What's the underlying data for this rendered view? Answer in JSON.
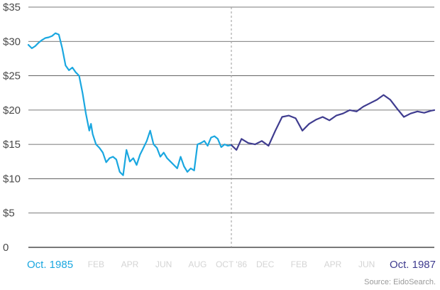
{
  "chart_data": {
    "type": "line",
    "source": "Source: EidoSearch.",
    "y_ticks": [
      "0",
      "$5",
      "$10",
      "$15",
      "$20",
      "$25",
      "$30",
      "$35"
    ],
    "ylim": [
      0,
      35
    ],
    "xlim": [
      0,
      24
    ],
    "grid": true,
    "x_end_labels": {
      "left": "Oct. 1985",
      "right": "Oct. 1987"
    },
    "x_ticks": [
      {
        "x": 4,
        "label": "FEB"
      },
      {
        "x": 6,
        "label": "APR"
      },
      {
        "x": 8,
        "label": "JUN"
      },
      {
        "x": 10,
        "label": "AUG"
      },
      {
        "x": 12,
        "label": "OCT '86"
      },
      {
        "x": 14,
        "label": "DEC"
      },
      {
        "x": 16,
        "label": "FEB"
      },
      {
        "x": 18,
        "label": "APR"
      },
      {
        "x": 20,
        "label": "JUN"
      }
    ],
    "divider_x": 12,
    "colors": {
      "left": "#1aa7e0",
      "right": "#3f3c8f",
      "grid": "#4d4d4d",
      "divider": "#9a9a9a"
    },
    "series": [
      {
        "x": [
          0.0,
          0.2,
          0.4,
          0.6,
          0.8,
          1.0,
          1.2,
          1.4,
          1.6,
          1.8,
          2.0,
          2.2,
          2.4,
          2.6,
          2.8,
          3.0,
          3.2,
          3.4,
          3.6,
          3.7,
          3.8,
          4.0,
          4.2,
          4.4,
          4.6,
          4.8,
          5.0,
          5.2,
          5.4,
          5.6,
          5.8,
          6.0,
          6.2,
          6.4,
          6.6,
          6.8,
          7.0,
          7.2,
          7.4,
          7.6,
          7.8,
          8.0,
          8.2,
          8.4,
          8.6,
          8.8,
          9.0,
          9.2,
          9.4,
          9.6,
          9.8,
          10.0,
          10.2,
          10.4,
          10.6,
          10.8,
          11.0,
          11.2,
          11.4,
          11.6,
          11.8,
          12.0
        ],
        "values": [
          29.5,
          29.0,
          29.3,
          29.8,
          30.2,
          30.5,
          30.6,
          30.8,
          31.2,
          31.0,
          29.0,
          26.5,
          25.8,
          26.2,
          25.5,
          25.0,
          22.5,
          19.5,
          17.0,
          18.0,
          16.5,
          15.0,
          14.5,
          13.8,
          12.4,
          13.0,
          13.2,
          12.8,
          11.0,
          10.5,
          14.2,
          12.5,
          13.0,
          12.0,
          13.5,
          14.5,
          15.5,
          17.0,
          15.0,
          14.5,
          13.2,
          13.8,
          13.0,
          12.5,
          12.0,
          11.5,
          13.2,
          11.8,
          11.0,
          11.5,
          11.2,
          15.0,
          15.2,
          15.5,
          14.8,
          16.0,
          16.2,
          15.8,
          14.6,
          15.0,
          14.8,
          14.9
        ],
        "color_key": "left"
      },
      {
        "x": [
          12.0,
          12.3,
          12.6,
          13.0,
          13.4,
          13.8,
          14.2,
          14.6,
          15.0,
          15.4,
          15.8,
          16.2,
          16.6,
          17.0,
          17.4,
          17.8,
          18.2,
          18.6,
          19.0,
          19.4,
          19.8,
          20.2,
          20.6,
          21.0,
          21.4,
          21.8,
          22.2,
          22.6,
          23.0,
          23.4,
          23.8,
          24.0
        ],
        "values": [
          14.9,
          14.2,
          15.8,
          15.2,
          15.0,
          15.5,
          14.8,
          17.0,
          19.0,
          19.2,
          18.8,
          17.0,
          18.0,
          18.6,
          19.0,
          18.5,
          19.2,
          19.5,
          20.0,
          19.8,
          20.5,
          21.0,
          21.5,
          22.2,
          21.5,
          20.2,
          19.0,
          19.5,
          19.8,
          19.6,
          19.9,
          20.0
        ],
        "color_key": "right"
      }
    ]
  }
}
